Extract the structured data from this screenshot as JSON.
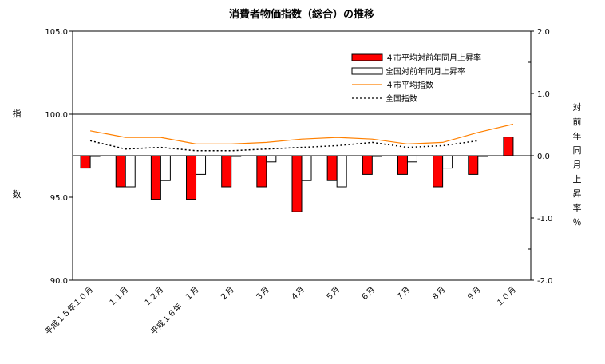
{
  "chart_data": {
    "type": "bar+line",
    "title": "消費者物価指数（総合）の推移",
    "categories": [
      "平成１５年１０月",
      "１１月",
      "１２月",
      "平成１６年　１月",
      "２月",
      "３月",
      "４月",
      "５月",
      "６月",
      "７月",
      "８月",
      "９月",
      "１０月"
    ],
    "left_axis": {
      "label": "指数",
      "ylim": [
        90.0,
        105.0
      ],
      "ticks": [
        "105.0",
        "100.0",
        "95.0",
        "90.0"
      ]
    },
    "right_axis": {
      "label": "対前年同月上昇率％",
      "ylim": [
        -2.0,
        2.0
      ],
      "ticks": [
        "2.0",
        "1.0",
        "0.0",
        "-1.0",
        "-2.0"
      ]
    },
    "series": [
      {
        "name": "４市平均対前年同月上昇率",
        "type": "bar",
        "axis": "right",
        "color": "#ff0000",
        "values": [
          -0.2,
          -0.5,
          -0.7,
          -0.7,
          -0.5,
          -0.5,
          -0.9,
          -0.4,
          -0.3,
          -0.3,
          -0.5,
          -0.3,
          0.3
        ]
      },
      {
        "name": "全国対前年同月上昇率",
        "type": "bar",
        "axis": "right",
        "color": "#ffffff",
        "values": [
          0.0,
          -0.5,
          -0.4,
          -0.3,
          0.0,
          -0.1,
          -0.4,
          -0.5,
          0.0,
          -0.1,
          -0.2,
          0.0,
          null
        ]
      },
      {
        "name": "４市平均指数",
        "type": "line",
        "axis": "left",
        "color": "#ff8000",
        "values": [
          99.0,
          98.6,
          98.6,
          98.2,
          98.2,
          98.3,
          98.5,
          98.6,
          98.5,
          98.2,
          98.3,
          98.9,
          99.4
        ]
      },
      {
        "name": "全国指数",
        "type": "dotted",
        "axis": "left",
        "color": "#000000",
        "values": [
          98.4,
          97.9,
          98.0,
          97.8,
          97.8,
          97.9,
          98.0,
          98.1,
          98.3,
          98.0,
          98.1,
          98.4,
          null
        ]
      }
    ],
    "legend_position": "top-right",
    "grid": false
  }
}
